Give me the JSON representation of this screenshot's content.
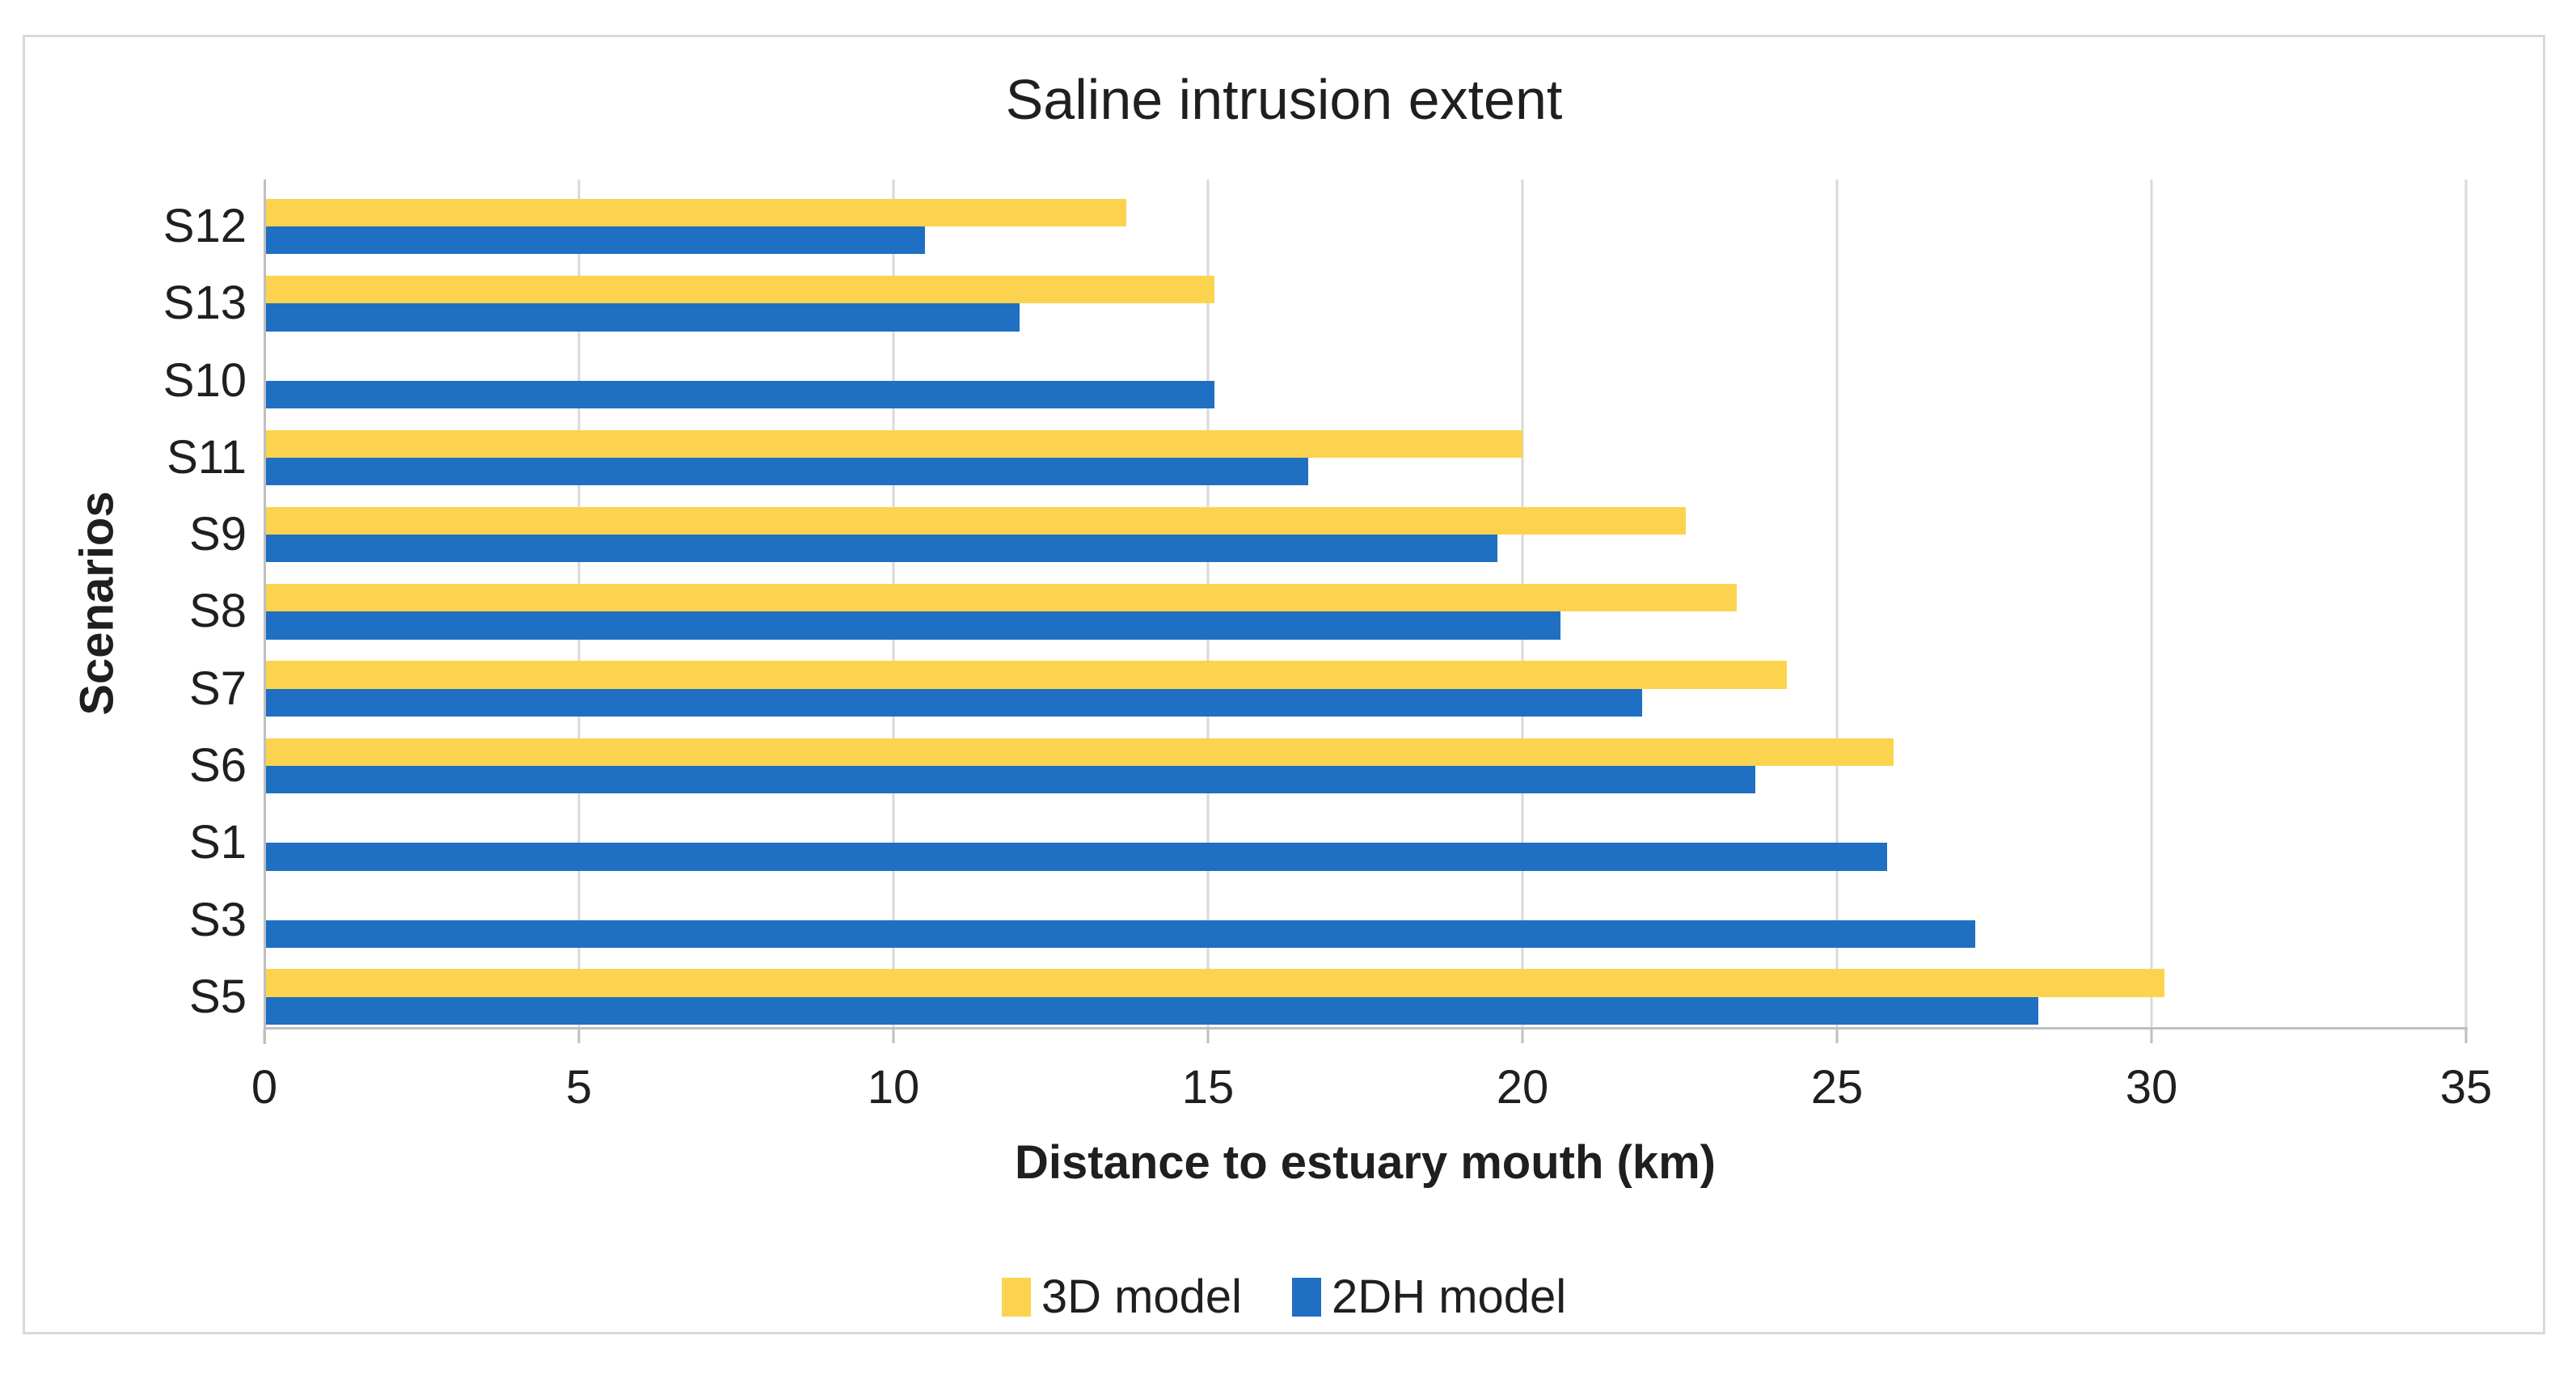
{
  "window": {
    "background": "#FFFFFF",
    "border_color": "#D9D9D9"
  },
  "chart_data": {
    "type": "bar",
    "orientation": "horizontal",
    "title": "Saline intrusion extent",
    "xlabel": "Distance to estuary mouth (km)",
    "ylabel": "Scenarios",
    "categories": [
      "S12",
      "S13",
      "S10",
      "S11",
      "S9",
      "S8",
      "S7",
      "S6",
      "S1",
      "S3",
      "S5"
    ],
    "series": [
      {
        "name": "3D model",
        "color": "#FCD34F",
        "values": [
          13.7,
          15.1,
          null,
          20.0,
          22.6,
          23.4,
          24.2,
          25.9,
          null,
          null,
          30.2
        ]
      },
      {
        "name": "2DH model",
        "color": "#1F6FC2",
        "values": [
          10.5,
          12.0,
          15.1,
          16.6,
          19.6,
          20.6,
          21.9,
          23.7,
          25.8,
          27.2,
          28.2
        ]
      }
    ],
    "xlim": [
      0,
      35
    ],
    "x_ticks": [
      0,
      5,
      10,
      15,
      20,
      25,
      30,
      35
    ],
    "grid": true,
    "gridline_color": "#D9D9D9",
    "axis_line_color": "#BFBFBF",
    "text_color": "#1F1F1F",
    "legend_position": "bottom"
  }
}
